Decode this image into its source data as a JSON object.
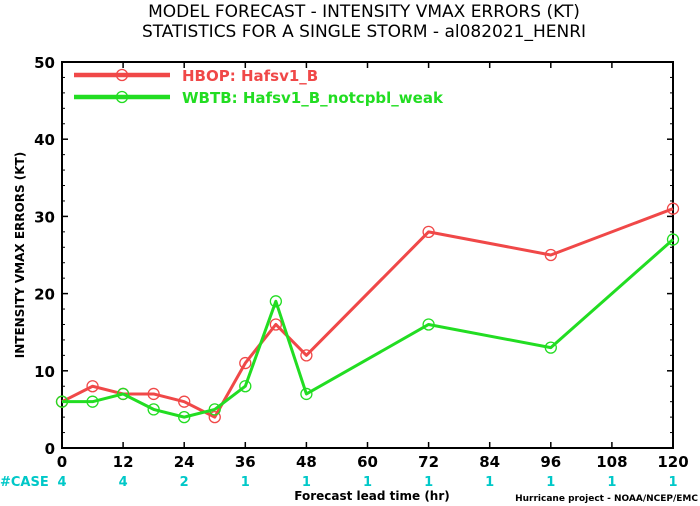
{
  "colors": {
    "hbop": "#f04848",
    "wbtb": "#22dd22",
    "case": "#00c8c8",
    "axis": "#000000"
  },
  "chart_data": {
    "type": "line",
    "title": [
      "MODEL FORECAST - INTENSITY VMAX ERRORS (KT)",
      "STATISTICS FOR A SINGLE STORM - al082021_HENRI"
    ],
    "xlabel": "Forecast lead time (hr)",
    "ylabel": "INTENSITY VMAX ERRORS (KT)",
    "xlim": [
      0,
      120
    ],
    "ylim": [
      0,
      50
    ],
    "xticks": [
      0,
      12,
      24,
      36,
      48,
      60,
      72,
      84,
      96,
      108,
      120
    ],
    "yticks": [
      0,
      10,
      20,
      30,
      40,
      50
    ],
    "grid": false,
    "legend": "top-left",
    "series": [
      {
        "name": "HBOP: Hafsv1_B",
        "color": "#f04848",
        "x": [
          0,
          6,
          12,
          18,
          24,
          30,
          36,
          42,
          48,
          72,
          96,
          120
        ],
        "y": [
          6,
          8,
          7,
          7,
          6,
          4,
          11,
          16,
          12,
          28,
          25,
          31
        ]
      },
      {
        "name": "WBTB: Hafsv1_B_notcpbl_weak",
        "color": "#22dd22",
        "x": [
          0,
          6,
          12,
          18,
          24,
          30,
          36,
          42,
          48,
          72,
          96,
          120
        ],
        "y": [
          6,
          6,
          7,
          5,
          4,
          5,
          8,
          19,
          7,
          16,
          13,
          27
        ]
      }
    ],
    "case_label": "#CASE",
    "cases": [
      {
        "x": 0,
        "n": "4"
      },
      {
        "x": 12,
        "n": "4"
      },
      {
        "x": 24,
        "n": "2"
      },
      {
        "x": 36,
        "n": "1"
      },
      {
        "x": 48,
        "n": "1"
      },
      {
        "x": 60,
        "n": "1"
      },
      {
        "x": 72,
        "n": "1"
      },
      {
        "x": 84,
        "n": "1"
      },
      {
        "x": 96,
        "n": "1"
      },
      {
        "x": 108,
        "n": "1"
      },
      {
        "x": 120,
        "n": "1"
      }
    ],
    "credit": "Hurricane project - NOAA/NCEP/EMC"
  }
}
